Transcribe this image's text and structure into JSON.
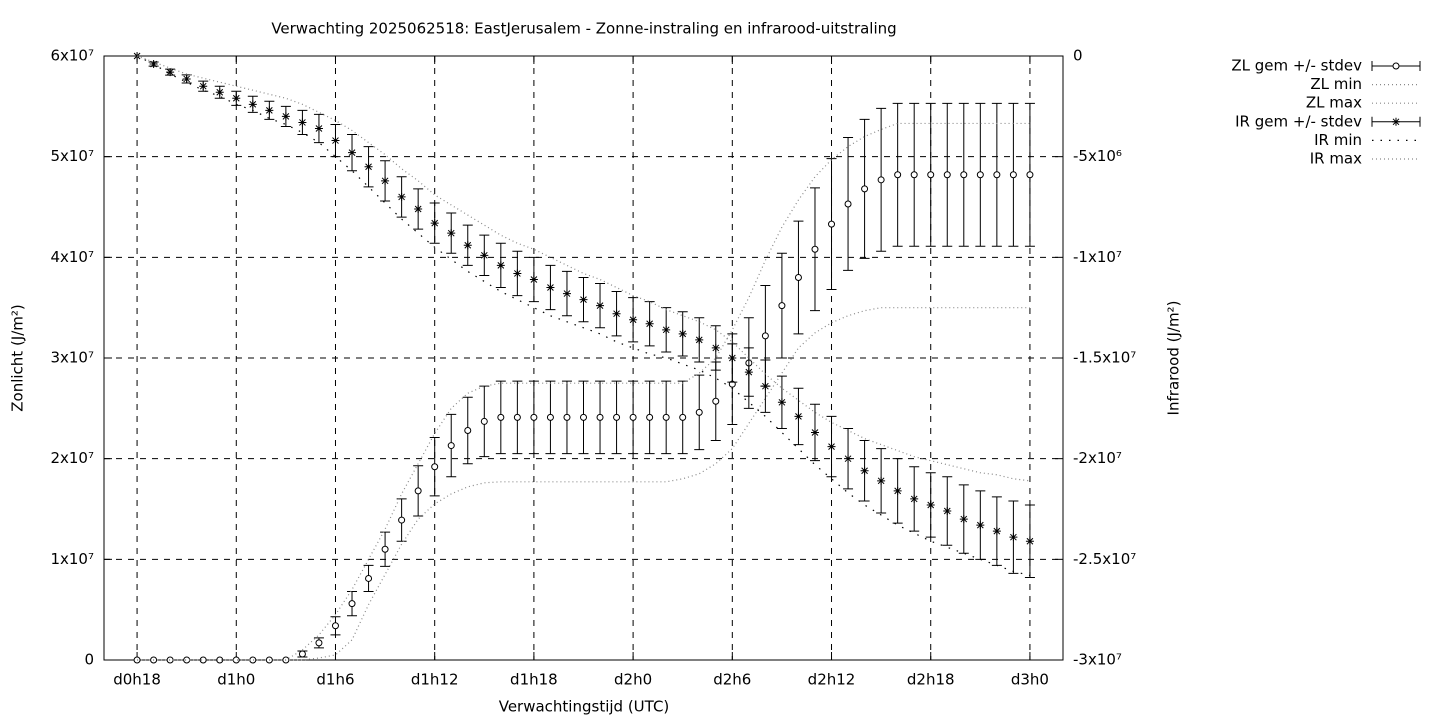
{
  "chart_data": {
    "type": "line",
    "title": "Verwachting 2025062518: EastJerusalem - Zonne-instraling en infrarood-uitstraling",
    "xlabel": "Verwachtingstijd (UTC)",
    "ylabel": "Zonlicht (J/m²)",
    "y2label": "Infrarood (J/m²)",
    "x": [
      18,
      19,
      20,
      21,
      22,
      23,
      24,
      25,
      26,
      27,
      28,
      29,
      30,
      31,
      32,
      33,
      34,
      35,
      36,
      37,
      38,
      39,
      40,
      41,
      42,
      43,
      44,
      45,
      46,
      47,
      48,
      49,
      50,
      51,
      52,
      53,
      54,
      55,
      56,
      57,
      58,
      59,
      60,
      61,
      62,
      63,
      64,
      65,
      66,
      67,
      68,
      69,
      70,
      71,
      72
    ],
    "xlim": [
      16,
      74
    ],
    "xticks": [
      {
        "value": 18,
        "label": "d0h18"
      },
      {
        "value": 24,
        "label": "d1h0"
      },
      {
        "value": 30,
        "label": "d1h6"
      },
      {
        "value": 36,
        "label": "d1h12"
      },
      {
        "value": 42,
        "label": "d1h18"
      },
      {
        "value": 48,
        "label": "d2h0"
      },
      {
        "value": 54,
        "label": "d2h6"
      },
      {
        "value": 60,
        "label": "d2h12"
      },
      {
        "value": 66,
        "label": "d2h18"
      },
      {
        "value": 72,
        "label": "d3h0"
      }
    ],
    "ylim": [
      0,
      60000000.0
    ],
    "yticks": [
      0,
      {
        "value": 10000000.0,
        "label": "1x10⁷"
      },
      {
        "value": 20000000.0,
        "label": "2x10⁷"
      },
      {
        "value": 30000000.0,
        "label": "3x10⁷"
      },
      {
        "value": 40000000.0,
        "label": "4x10⁷"
      },
      {
        "value": 50000000.0,
        "label": "5x10⁷"
      },
      {
        "value": 60000000.0,
        "label": "6x10⁷"
      }
    ],
    "y2lim": [
      -30000000.0,
      0
    ],
    "y2ticks": [
      {
        "value": -30000000.0,
        "label": "-3x10⁷"
      },
      {
        "value": -25000000.0,
        "label": "-2.5x10⁷"
      },
      {
        "value": -20000000.0,
        "label": "-2x10⁷"
      },
      {
        "value": -15000000.0,
        "label": "-1.5x10⁷"
      },
      {
        "value": -10000000.0,
        "label": "-1x10⁷"
      },
      {
        "value": -5000000.0,
        "label": "-5x10⁶"
      },
      0
    ],
    "grid": true,
    "legend": "right",
    "series": [
      {
        "name": "ZL gem +/- stdev",
        "color": "#000000",
        "marker": "circle",
        "style": "errorbars",
        "values": [
          0,
          0,
          0,
          0,
          0,
          0,
          0,
          0,
          0,
          0,
          600000.0,
          1700000.0,
          3400000.0,
          5600000.0,
          8100000.0,
          11000000.0,
          13900000.0,
          16800000.0,
          19200000.0,
          21300000.0,
          22800000.0,
          23700000.0,
          24100000.0,
          24100000.0,
          24100000.0,
          24100000.0,
          24100000.0,
          24100000.0,
          24100000.0,
          24100000.0,
          24100000.0,
          24100000.0,
          24100000.0,
          24100000.0,
          24600000.0,
          25700000.0,
          27400000.0,
          29500000.0,
          32200000.0,
          35200000.0,
          38000000.0,
          40800000.0,
          43300000.0,
          45300000.0,
          46800000.0,
          47700000.0,
          48200000.0,
          48200000.0,
          48200000.0,
          48200000.0,
          48200000.0,
          48200000.0,
          48200000.0,
          48200000.0,
          48200000.0
        ],
        "errors": [
          0,
          0,
          0,
          0,
          0,
          0,
          0,
          0,
          0,
          0,
          300000.0,
          500000.0,
          900000.0,
          1200000.0,
          1300000.0,
          1700000.0,
          2100000.0,
          2500000.0,
          2900000.0,
          3100000.0,
          3300000.0,
          3500000.0,
          3600000.0,
          3600000.0,
          3600000.0,
          3600000.0,
          3600000.0,
          3600000.0,
          3600000.0,
          3600000.0,
          3600000.0,
          3600000.0,
          3600000.0,
          3600000.0,
          3700000.0,
          3900000.0,
          4000000.0,
          4500000.0,
          5000000.0,
          5200000.0,
          5600000.0,
          6100000.0,
          6500000.0,
          6600000.0,
          6900000.0,
          7100000.0,
          7100000.0,
          7100000.0,
          7100000.0,
          7100000.0,
          7100000.0,
          7100000.0,
          7100000.0,
          7100000.0,
          7100000.0
        ]
      },
      {
        "name": "ZL min",
        "color": "#888888",
        "style": "dotted",
        "values": [
          0,
          0,
          0,
          0,
          0,
          0,
          0,
          0,
          0,
          0,
          0,
          200000.0,
          500000.0,
          2000000.0,
          5500000.0,
          8500000.0,
          11500000.0,
          14000000.0,
          15500000.0,
          16500000.0,
          17200000.0,
          17600000.0,
          17700000.0,
          17700000.0,
          17700000.0,
          17700000.0,
          17700000.0,
          17700000.0,
          17700000.0,
          17700000.0,
          17700000.0,
          17700000.0,
          17700000.0,
          18000000.0,
          18500000.0,
          19500000.0,
          21000000.0,
          23500000.0,
          26000000.0,
          28500000.0,
          31000000.0,
          32500000.0,
          33500000.0,
          34200000.0,
          34700000.0,
          35000000.0,
          35000000.0,
          35000000.0,
          35000000.0,
          35000000.0,
          35000000.0,
          35000000.0,
          35000000.0,
          35000000.0,
          35000000.0
        ]
      },
      {
        "name": "ZL max",
        "color": "#888888",
        "style": "dotted",
        "values": [
          0,
          0,
          0,
          0,
          0,
          0,
          0,
          0,
          0,
          0,
          1000000.0,
          2500000.0,
          4500000.0,
          7000000.0,
          10000000.0,
          13000000.0,
          16500000.0,
          19500000.0,
          22500000.0,
          25000000.0,
          26500000.0,
          27200000.0,
          27500000.0,
          27500000.0,
          27500000.0,
          27500000.0,
          27500000.0,
          27500000.0,
          27500000.0,
          27500000.0,
          27500000.0,
          27500000.0,
          27500000.0,
          27500000.0,
          28500000.0,
          30000000.0,
          32800000.0,
          36000000.0,
          39700000.0,
          43000000.0,
          45700000.0,
          48000000.0,
          49700000.0,
          51000000.0,
          52000000.0,
          52700000.0,
          53300000.0,
          53300000.0,
          53300000.0,
          53300000.0,
          53300000.0,
          53300000.0,
          53300000.0,
          53300000.0,
          53300000.0
        ]
      },
      {
        "name": "IR gem +/- stdev",
        "color": "#000000",
        "marker": "star",
        "style": "errorbars",
        "axis": "y2",
        "values": [
          0,
          -400000.0,
          -800000.0,
          -1140000.0,
          -1500000.0,
          -1800000.0,
          -2100000.0,
          -2400000.0,
          -2700000.0,
          -3000000.0,
          -3300000.0,
          -3600000.0,
          -4200000.0,
          -4800000.0,
          -5500000.0,
          -6200000.0,
          -7000000.0,
          -7600000.0,
          -8300000.0,
          -8800000.0,
          -9400000.0,
          -9900000.0,
          -10400000.0,
          -10800000.0,
          -11100000.0,
          -11500000.0,
          -11800000.0,
          -12100000.0,
          -12400000.0,
          -12800000.0,
          -13100000.0,
          -13300000.0,
          -13600000.0,
          -13800000.0,
          -14100000.0,
          -14500000.0,
          -15000000.0,
          -15700000.0,
          -16400000.0,
          -17200000.0,
          -17900000.0,
          -18700000.0,
          -19400000.0,
          -20000000.0,
          -20600000.0,
          -21100000.0,
          -21600000.0,
          -22000000.0,
          -22300000.0,
          -22600000.0,
          -23000000.0,
          -23300000.0,
          -23600000.0,
          -23900000.0,
          -24100000.0
        ],
        "errors": [
          0,
          100000.0,
          150000.0,
          200000.0,
          250000.0,
          300000.0,
          350000.0,
          400000.0,
          450000.0,
          500000.0,
          600000.0,
          700000.0,
          800000.0,
          900000.0,
          1000000.0,
          1000000.0,
          1000000.0,
          1000000.0,
          1000000.0,
          1000000.0,
          1000000.0,
          1000000.0,
          1100000.0,
          1100000.0,
          1100000.0,
          1100000.0,
          1100000.0,
          1100000.0,
          1100000.0,
          1100000.0,
          1100000.0,
          1100000.0,
          1100000.0,
          1100000.0,
          1100000.0,
          1100000.0,
          1200000.0,
          1200000.0,
          1300000.0,
          1300000.0,
          1400000.0,
          1400000.0,
          1500000.0,
          1500000.0,
          1500000.0,
          1600000.0,
          1600000.0,
          1600000.0,
          1600000.0,
          1700000.0,
          1700000.0,
          1700000.0,
          1700000.0,
          1800000.0,
          1800000.0
        ]
      },
      {
        "name": "IR min",
        "color": "#000000",
        "style": "sparse",
        "axis": "y2",
        "values": [
          0,
          -400000.0,
          -900000.0,
          -1300000.0,
          -1700000.0,
          -2000000.0,
          -2400000.0,
          -2700000.0,
          -3100000.0,
          -3400000.0,
          -3800000.0,
          -4300000.0,
          -5000000.0,
          -5700000.0,
          -6500000.0,
          -7300000.0,
          -8100000.0,
          -8800000.0,
          -9500000.0,
          -10100000.0,
          -10700000.0,
          -11200000.0,
          -11700000.0,
          -12100000.0,
          -12500000.0,
          -12900000.0,
          -13200000.0,
          -13500000.0,
          -13800000.0,
          -14200000.0,
          -14500000.0,
          -14800000.0,
          -15000000.0,
          -15300000.0,
          -15600000.0,
          -16000000.0,
          -16500000.0,
          -17200000.0,
          -17900000.0,
          -18700000.0,
          -19500000.0,
          -20300000.0,
          -21000000.0,
          -21700000.0,
          -22300000.0,
          -22800000.0,
          -23300000.0,
          -23700000.0,
          -24100000.0,
          -24400000.0,
          -24700000.0,
          -25000000.0,
          -25300000.0,
          -25600000.0,
          -25800000.0
        ]
      },
      {
        "name": "IR max",
        "color": "#888888",
        "style": "dotted",
        "axis": "y2",
        "values": [
          0,
          -300000.0,
          -600000.0,
          -900000.0,
          -1100000.0,
          -1300000.0,
          -1500000.0,
          -1700000.0,
          -1900000.0,
          -2100000.0,
          -2400000.0,
          -2800000.0,
          -3200000.0,
          -3700000.0,
          -4300000.0,
          -4900000.0,
          -5600000.0,
          -6200000.0,
          -6900000.0,
          -7400000.0,
          -7900000.0,
          -8400000.0,
          -8900000.0,
          -9300000.0,
          -9600000.0,
          -10000000.0,
          -10400000.0,
          -10800000.0,
          -11100000.0,
          -11500000.0,
          -11900000.0,
          -12200000.0,
          -12600000.0,
          -12900000.0,
          -13200000.0,
          -13600000.0,
          -14200000.0,
          -15000000.0,
          -15800000.0,
          -16500000.0,
          -17100000.0,
          -17700000.0,
          -18200000.0,
          -18600000.0,
          -19000000.0,
          -19300000.0,
          -19600000.0,
          -19900000.0,
          -20100000.0,
          -20300000.0,
          -20500000.0,
          -20700000.0,
          -20800000.0,
          -21000000.0,
          -21100000.0
        ]
      }
    ]
  }
}
